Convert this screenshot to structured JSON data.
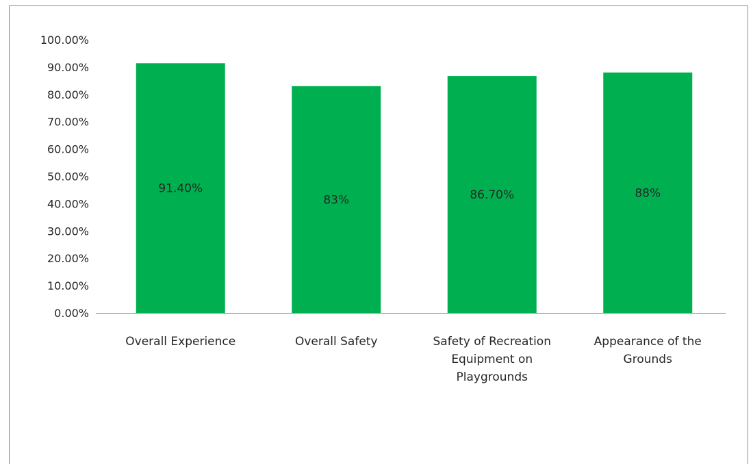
{
  "chart_data": {
    "type": "bar",
    "categories": [
      "Overall Experience",
      "Overall Safety",
      "Safety of Recreation Equipment on Playgrounds",
      "Appearance of the Grounds"
    ],
    "category_label_lines": [
      [
        "Overall Experience"
      ],
      [
        "Overall Safety"
      ],
      [
        "Safety of Recreation",
        "Equipment on",
        "Playgrounds"
      ],
      [
        "Appearance of the",
        "Grounds"
      ]
    ],
    "values": [
      91.4,
      83,
      86.7,
      88
    ],
    "data_labels": [
      "91.40%",
      "83%",
      "86.70%",
      "88%"
    ],
    "yticks": [
      "0.00%",
      "10.00%",
      "20.00%",
      "30.00%",
      "40.00%",
      "50.00%",
      "60.00%",
      "70.00%",
      "80.00%",
      "90.00%",
      "100.00%"
    ],
    "ylim": [
      0,
      100
    ],
    "title": "",
    "xlabel": "",
    "ylabel": "",
    "grid": false,
    "legend": "none",
    "bar_color": "#00b050",
    "axis_color": "#8c8c8c"
  }
}
